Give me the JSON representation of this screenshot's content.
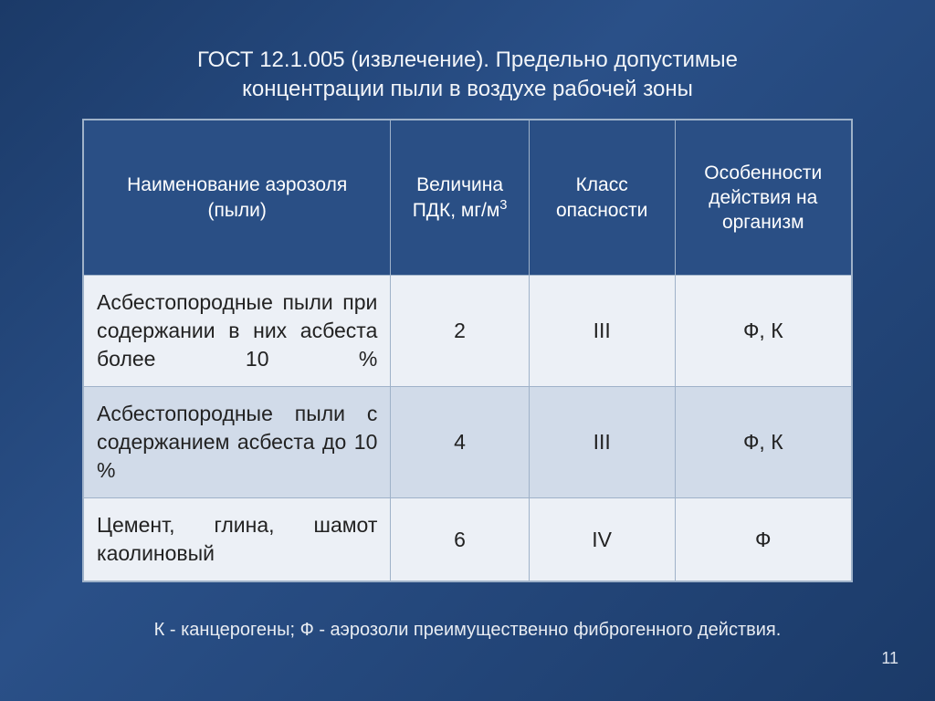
{
  "title_line1": "ГОСТ 12.1.005 (извлечение).   Предельно допустимые",
  "title_line2": "концентрации пыли  в воздухе рабочей зоны",
  "table": {
    "columns": [
      {
        "label": "Наименование аэрозоля (пыли)"
      },
      {
        "label_html": "Величина ПДК, мг/м<sup>3</sup>"
      },
      {
        "label": "Класс опасности"
      },
      {
        "label": "Особенности действия на организм"
      }
    ],
    "rows": [
      {
        "name": "Асбестопородные пыли при содержании в них асбеста более 10 %",
        "pdk": "2",
        "class": "III",
        "effect": "Ф, К"
      },
      {
        "name": "Асбестопородные пыли с содержанием асбеста до 10 %",
        "pdk": "4",
        "class": "III",
        "effect": "Ф, К"
      },
      {
        "name": "Цемент, глина, шамот каолиновый",
        "pdk": "6",
        "class": "IV",
        "effect": "Ф"
      }
    ],
    "header_bg": "#2a4f85",
    "header_fg": "#ffffff",
    "row_odd_bg": "#ecf0f6",
    "row_even_bg": "#d1dbe9",
    "border_color": "#9fb2c9",
    "body_fg": "#222222",
    "body_fontsize": 23,
    "header_fontsize": 21
  },
  "footnote": "К -  канцерогены;  Ф - аэрозоли преимущественно фиброгенного действия.",
  "page_number": "11",
  "slide_bg_gradient": [
    "#1b3a68",
    "#2a5088",
    "#1b3a68"
  ]
}
